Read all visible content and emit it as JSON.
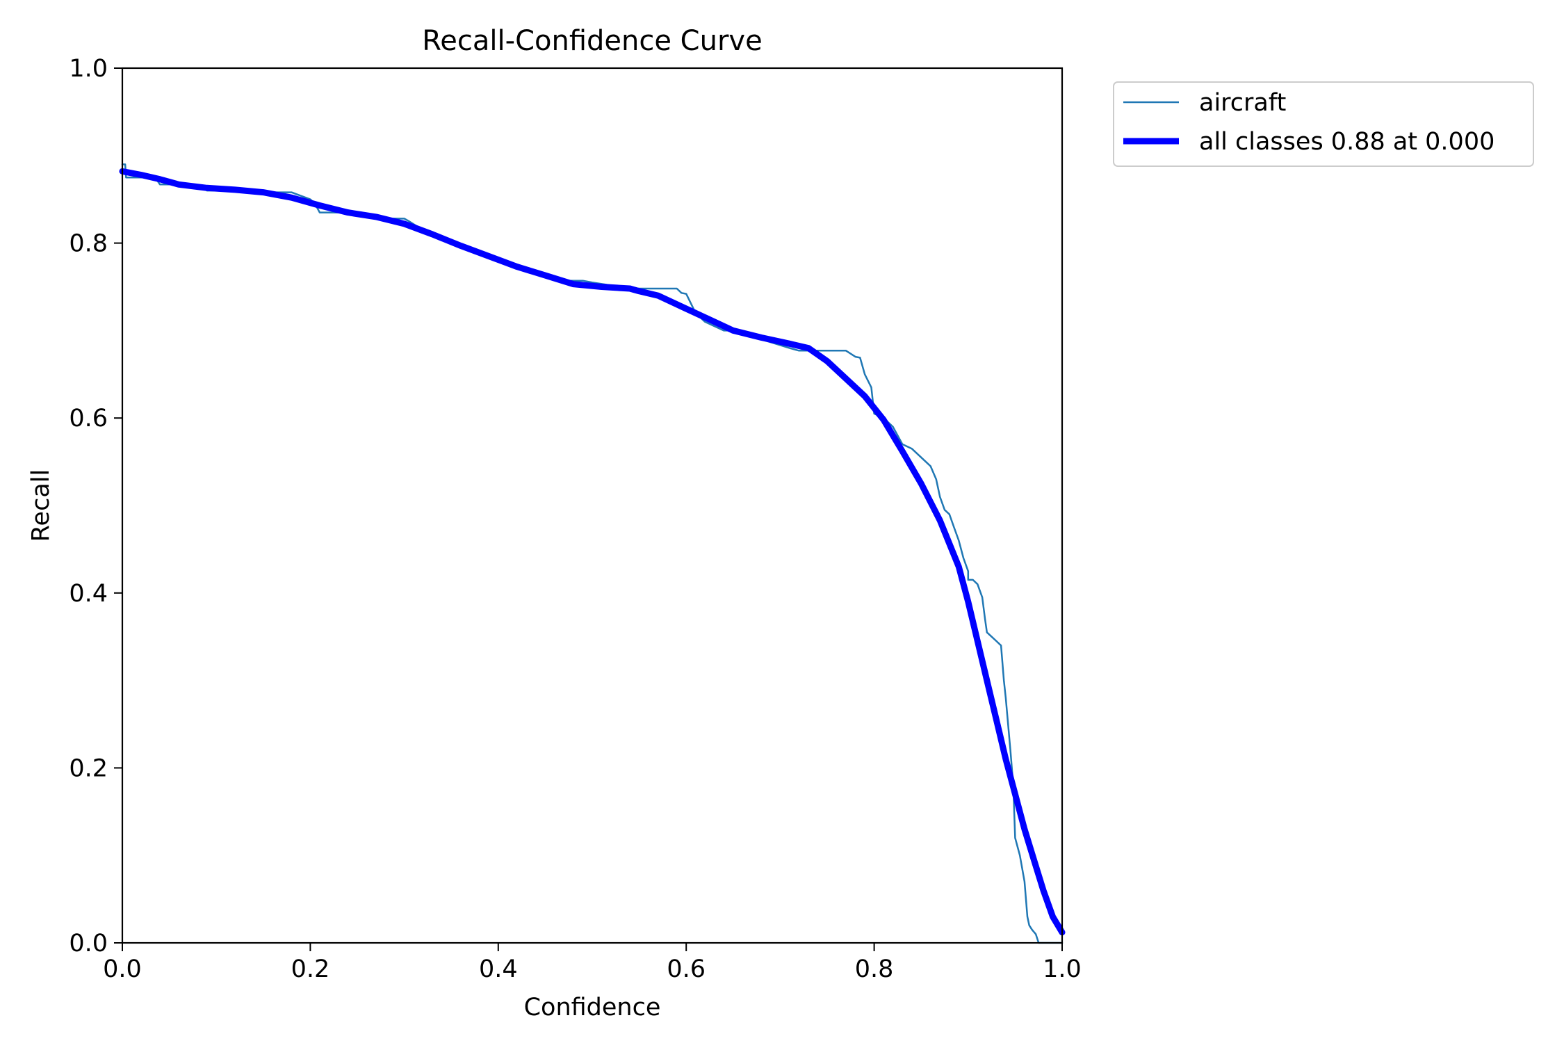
{
  "chart_data": {
    "type": "line",
    "title": "Recall-Confidence Curve",
    "xlabel": "Confidence",
    "ylabel": "Recall",
    "xlim": [
      0,
      1
    ],
    "ylim": [
      0,
      1
    ],
    "xticks": [
      "0.0",
      "0.2",
      "0.4",
      "0.6",
      "0.8",
      "1.0"
    ],
    "yticks": [
      "0.0",
      "0.2",
      "0.4",
      "0.6",
      "0.8",
      "1.0"
    ],
    "grid": false,
    "legend_position": "outside upper-right",
    "series": [
      {
        "name": "aircraft",
        "color": "#1f77b4",
        "x": [
          0.0,
          0.003,
          0.004,
          0.006,
          0.02,
          0.035,
          0.04,
          0.07,
          0.085,
          0.09,
          0.12,
          0.15,
          0.165,
          0.18,
          0.2,
          0.205,
          0.21,
          0.24,
          0.255,
          0.27,
          0.3,
          0.305,
          0.33,
          0.36,
          0.375,
          0.38,
          0.41,
          0.445,
          0.47,
          0.475,
          0.49,
          0.5,
          0.53,
          0.55,
          0.56,
          0.59,
          0.595,
          0.6,
          0.61,
          0.62,
          0.63,
          0.64,
          0.65,
          0.68,
          0.71,
          0.72,
          0.735,
          0.76,
          0.77,
          0.78,
          0.785,
          0.79,
          0.797,
          0.8,
          0.81,
          0.82,
          0.83,
          0.84,
          0.85,
          0.86,
          0.866,
          0.87,
          0.875,
          0.88,
          0.885,
          0.89,
          0.895,
          0.9,
          0.9,
          0.905,
          0.91,
          0.915,
          0.918,
          0.92,
          0.925,
          0.93,
          0.935,
          0.938,
          0.94,
          0.945,
          0.948,
          0.95,
          0.955,
          0.96,
          0.963,
          0.965,
          0.968,
          0.972,
          0.975,
          0.978,
          0.98,
          1.0
        ],
        "y": [
          0.89,
          0.89,
          0.875,
          0.875,
          0.875,
          0.875,
          0.867,
          0.867,
          0.865,
          0.86,
          0.86,
          0.858,
          0.858,
          0.858,
          0.85,
          0.845,
          0.835,
          0.835,
          0.835,
          0.828,
          0.828,
          0.825,
          0.808,
          0.795,
          0.79,
          0.787,
          0.775,
          0.765,
          0.757,
          0.757,
          0.757,
          0.755,
          0.75,
          0.748,
          0.748,
          0.748,
          0.743,
          0.742,
          0.72,
          0.71,
          0.705,
          0.7,
          0.7,
          0.69,
          0.68,
          0.677,
          0.677,
          0.677,
          0.677,
          0.67,
          0.669,
          0.65,
          0.635,
          0.605,
          0.6,
          0.59,
          0.57,
          0.565,
          0.555,
          0.545,
          0.53,
          0.51,
          0.495,
          0.49,
          0.475,
          0.46,
          0.44,
          0.425,
          0.415,
          0.415,
          0.41,
          0.395,
          0.37,
          0.355,
          0.35,
          0.345,
          0.34,
          0.3,
          0.28,
          0.22,
          0.18,
          0.12,
          0.1,
          0.07,
          0.03,
          0.02,
          0.015,
          0.01,
          0.0,
          0.0,
          0.0,
          0.0
        ]
      },
      {
        "name": "all classes 0.88 at 0.000",
        "color": "#0000ff",
        "x": [
          0.0,
          0.02,
          0.04,
          0.06,
          0.09,
          0.12,
          0.15,
          0.18,
          0.21,
          0.24,
          0.27,
          0.3,
          0.33,
          0.36,
          0.39,
          0.42,
          0.45,
          0.48,
          0.51,
          0.54,
          0.55,
          0.57,
          0.6,
          0.63,
          0.65,
          0.68,
          0.71,
          0.73,
          0.75,
          0.77,
          0.79,
          0.81,
          0.83,
          0.85,
          0.87,
          0.89,
          0.9,
          0.91,
          0.92,
          0.93,
          0.94,
          0.95,
          0.96,
          0.97,
          0.98,
          0.99,
          1.0
        ],
        "y": [
          0.882,
          0.878,
          0.873,
          0.867,
          0.863,
          0.861,
          0.858,
          0.852,
          0.843,
          0.835,
          0.83,
          0.822,
          0.81,
          0.797,
          0.785,
          0.773,
          0.763,
          0.753,
          0.75,
          0.748,
          0.745,
          0.74,
          0.725,
          0.71,
          0.7,
          0.692,
          0.685,
          0.68,
          0.665,
          0.645,
          0.625,
          0.598,
          0.562,
          0.525,
          0.483,
          0.43,
          0.39,
          0.345,
          0.3,
          0.255,
          0.21,
          0.17,
          0.13,
          0.095,
          0.06,
          0.03,
          0.012
        ]
      }
    ]
  }
}
